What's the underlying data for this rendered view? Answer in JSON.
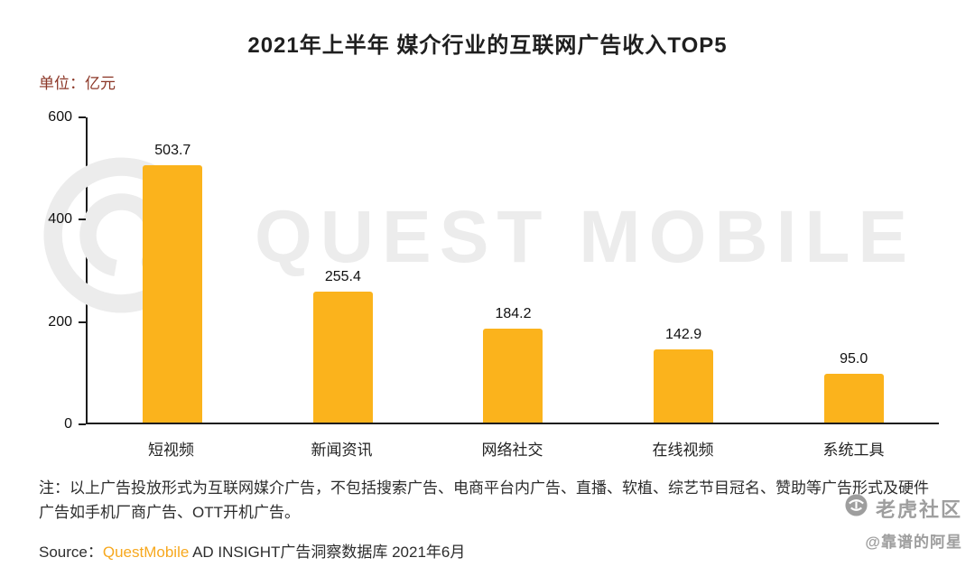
{
  "header": {
    "title": "2021年上半年 媒介行业的互联网广告收入TOP5",
    "unit_label": "单位：亿元"
  },
  "chart_data": {
    "type": "bar",
    "title": "2021年上半年 媒介行业的互联网广告收入TOP5",
    "unit": "亿元",
    "categories": [
      "短视频",
      "新闻资讯",
      "网络社交",
      "在线视频",
      "系统工具"
    ],
    "values": [
      503.7,
      255.4,
      184.2,
      142.9,
      95.0
    ],
    "value_labels": [
      "503.7",
      "255.4",
      "184.2",
      "142.9",
      "95.0"
    ],
    "xlabel": "",
    "ylabel": "单位：亿元",
    "ylim": [
      0,
      600
    ],
    "yticks": [
      0,
      200,
      400,
      600
    ],
    "grid": false,
    "legend": false,
    "bar_color": "#FBB31C"
  },
  "footer": {
    "note": "注：以上广告投放形式为互联网媒介广告，不包括搜索广告、电商平台内广告、直播、软植、综艺节目冠名、赞助等广告形式及硬件广告如手机厂商广告、OTT开机广告。",
    "source_prefix": "Source：",
    "source_brand": "QuestMobile",
    "source_suffix": " AD INSIGHT广告洞察数据库 2021年6月"
  },
  "watermarks": {
    "brand_text": "QUEST MOBILE",
    "community_name": "老虎社区",
    "community_handle": "@靠谱的阿星"
  },
  "colors": {
    "bar": "#FBB31C",
    "unit_label": "#8B3626",
    "source_brand": "#F7A81E",
    "watermark_light_gray": "#ECECEC",
    "watermark_gray": "#9E9E9E",
    "axis": "#1C1C1C"
  }
}
